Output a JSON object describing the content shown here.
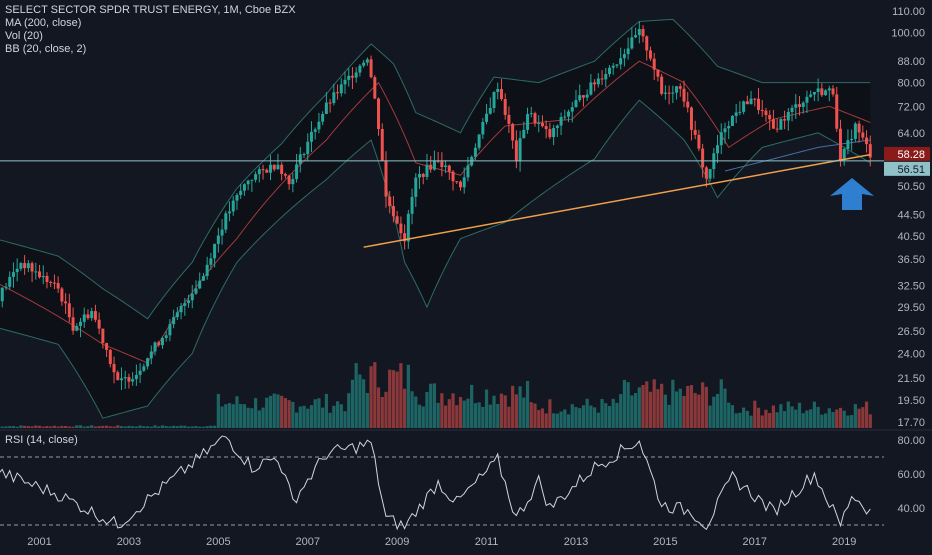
{
  "header": {
    "symbol_line": "SELECT SECTOR SPDR TRUST ENERGY, 1M, Cboe BZX",
    "indicators": [
      "MA (200, close)",
      "Vol (20)",
      "BB (20, close, 2)"
    ]
  },
  "rsi": {
    "label": "RSI (14, close)",
    "ticks": [
      "80.00",
      "60.00",
      "40.00"
    ]
  },
  "colors": {
    "background": "#131722",
    "up": "#26a69a",
    "down": "#ef5350",
    "bb": "#2d6b63",
    "basis": "#a33a3a",
    "ma": "#4a6fa5",
    "trendline": "#f0a04b",
    "support": "#8fc1c7",
    "arrow": "#2f7fd1",
    "last_price_bg": "#8b1a1a",
    "support_bg": "#8fc1c7"
  },
  "chart_data": {
    "type": "candlestick",
    "scale": "log",
    "y_ticks": [
      "110.00",
      "100.00",
      "88.00",
      "80.00",
      "72.00",
      "64.00",
      "56.51",
      "50.50",
      "44.50",
      "40.50",
      "36.50",
      "32.50",
      "29.50",
      "26.50",
      "24.00",
      "21.50",
      "19.50",
      "17.70"
    ],
    "x_ticks": [
      "2001",
      "2003",
      "2005",
      "2007",
      "2009",
      "2011",
      "2013",
      "2015",
      "2017",
      "2019"
    ],
    "last_price": "58.28",
    "support_label": "56.51",
    "support_level": 56.51,
    "trendline": {
      "start": [
        "2008-04",
        38.5
      ],
      "end": [
        "2019-08",
        58.1
      ]
    },
    "anchors": [
      [
        "2000-01",
        30
      ],
      [
        "2000-08",
        36
      ],
      [
        "2001-01",
        34
      ],
      [
        "2001-06",
        32
      ],
      [
        "2001-10",
        27
      ],
      [
        "2002-03",
        29
      ],
      [
        "2002-10",
        21
      ],
      [
        "2003-03",
        22
      ],
      [
        "2003-12",
        27
      ],
      [
        "2004-09",
        34
      ],
      [
        "2005-03",
        44
      ],
      [
        "2005-09",
        52
      ],
      [
        "2006-05",
        56
      ],
      [
        "2006-08",
        51
      ],
      [
        "2007-06",
        72
      ],
      [
        "2007-11",
        80
      ],
      [
        "2008-05",
        90
      ],
      [
        "2008-08",
        66
      ],
      [
        "2008-10",
        48
      ],
      [
        "2009-03",
        40
      ],
      [
        "2009-06",
        52
      ],
      [
        "2009-12",
        57
      ],
      [
        "2010-06",
        50
      ],
      [
        "2010-12",
        66
      ],
      [
        "2011-04",
        79
      ],
      [
        "2011-09",
        57
      ],
      [
        "2011-12",
        70
      ],
      [
        "2012-06",
        63
      ],
      [
        "2012-12",
        72
      ],
      [
        "2013-12",
        88
      ],
      [
        "2014-06",
        100
      ],
      [
        "2014-09",
        90
      ],
      [
        "2014-12",
        76
      ],
      [
        "2015-05",
        79
      ],
      [
        "2015-08",
        66
      ],
      [
        "2015-12",
        52
      ],
      [
        "2016-05",
        66
      ],
      [
        "2016-12",
        75
      ],
      [
        "2017-06",
        65
      ],
      [
        "2017-12",
        72
      ],
      [
        "2018-05",
        77
      ],
      [
        "2018-10",
        77
      ],
      [
        "2018-12",
        56
      ],
      [
        "2019-04",
        66
      ],
      [
        "2019-08",
        58.28
      ]
    ],
    "bb_upper_anchors": [
      [
        "2000-01",
        40
      ],
      [
        "2001-06",
        37
      ],
      [
        "2002-06",
        32
      ],
      [
        "2003-06",
        28
      ],
      [
        "2004-06",
        36
      ],
      [
        "2005-06",
        50
      ],
      [
        "2006-06",
        61
      ],
      [
        "2007-06",
        76
      ],
      [
        "2008-06",
        95
      ],
      [
        "2008-12",
        87
      ],
      [
        "2009-06",
        70
      ],
      [
        "2010-06",
        64
      ],
      [
        "2011-03",
        82
      ],
      [
        "2012-03",
        80
      ],
      [
        "2013-06",
        88
      ],
      [
        "2014-06",
        105
      ],
      [
        "2015-03",
        106
      ],
      [
        "2016-03",
        86
      ],
      [
        "2017-03",
        80
      ],
      [
        "2018-06",
        80
      ],
      [
        "2019-08",
        80
      ]
    ],
    "bb_lower_anchors": [
      [
        "2000-01",
        27
      ],
      [
        "2001-06",
        25
      ],
      [
        "2002-06",
        18
      ],
      [
        "2003-06",
        19
      ],
      [
        "2004-06",
        24
      ],
      [
        "2005-06",
        36
      ],
      [
        "2006-06",
        44
      ],
      [
        "2007-06",
        52
      ],
      [
        "2008-06",
        62
      ],
      [
        "2009-03",
        36
      ],
      [
        "2009-09",
        29.5
      ],
      [
        "2010-06",
        40
      ],
      [
        "2011-06",
        43
      ],
      [
        "2012-06",
        50
      ],
      [
        "2013-06",
        57
      ],
      [
        "2014-06",
        74
      ],
      [
        "2015-06",
        62
      ],
      [
        "2016-03",
        48
      ],
      [
        "2017-03",
        60
      ],
      [
        "2018-06",
        64
      ],
      [
        "2019-08",
        56
      ]
    ],
    "basis_anchors": [
      [
        "2000-01",
        33
      ],
      [
        "2002-06",
        25
      ],
      [
        "2003-06",
        23
      ],
      [
        "2005-06",
        40
      ],
      [
        "2007-06",
        62
      ],
      [
        "2008-08",
        80
      ],
      [
        "2009-06",
        56
      ],
      [
        "2010-06",
        53
      ],
      [
        "2011-06",
        66
      ],
      [
        "2012-12",
        68
      ],
      [
        "2014-06",
        88
      ],
      [
        "2015-06",
        80
      ],
      [
        "2016-06",
        60
      ],
      [
        "2017-06",
        68
      ],
      [
        "2018-09",
        72
      ],
      [
        "2019-08",
        67
      ]
    ],
    "ma200_anchors": [
      [
        "2016-05",
        54
      ],
      [
        "2017-06",
        57
      ],
      [
        "2018-06",
        60
      ],
      [
        "2019-08",
        62
      ]
    ],
    "rsi_anchors": [
      [
        "2000-01",
        62
      ],
      [
        "2001-06",
        48
      ],
      [
        "2002-10",
        30
      ],
      [
        "2003-06",
        45
      ],
      [
        "2004-06",
        66
      ],
      [
        "2005-03",
        82
      ],
      [
        "2005-10",
        64
      ],
      [
        "2006-05",
        70
      ],
      [
        "2006-09",
        44
      ],
      [
        "2007-06",
        72
      ],
      [
        "2008-06",
        78
      ],
      [
        "2008-10",
        34
      ],
      [
        "2009-03",
        29
      ],
      [
        "2009-12",
        55
      ],
      [
        "2010-05",
        43
      ],
      [
        "2011-04",
        68
      ],
      [
        "2011-09",
        34
      ],
      [
        "2012-03",
        56
      ],
      [
        "2012-06",
        40
      ],
      [
        "2013-06",
        64
      ],
      [
        "2014-06",
        80
      ],
      [
        "2014-12",
        42
      ],
      [
        "2015-08",
        38
      ],
      [
        "2015-12",
        30
      ],
      [
        "2016-07",
        58
      ],
      [
        "2017-06",
        38
      ],
      [
        "2018-05",
        60
      ],
      [
        "2018-12",
        30
      ],
      [
        "2019-03",
        48
      ],
      [
        "2019-08",
        38
      ]
    ],
    "volume_scale_note": "volume shown as relative bars"
  }
}
